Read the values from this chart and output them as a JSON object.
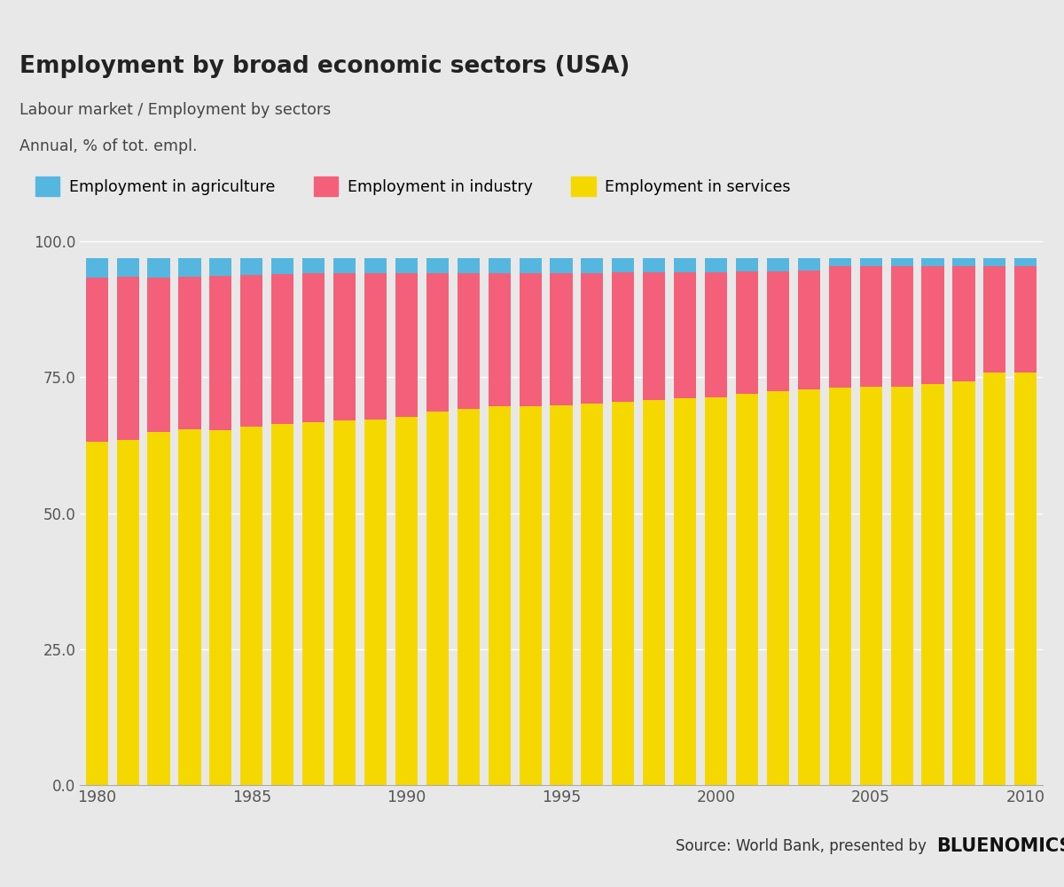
{
  "title": "Employment by broad economic sectors (USA)",
  "subtitle1": "Labour market / Employment by sectors",
  "subtitle2": "Annual, % of tot. empl.",
  "years": [
    1980,
    1981,
    1982,
    1983,
    1984,
    1985,
    1986,
    1987,
    1988,
    1989,
    1990,
    1991,
    1992,
    1993,
    1994,
    1995,
    1996,
    1997,
    1998,
    1999,
    2000,
    2001,
    2002,
    2003,
    2004,
    2005,
    2006,
    2007,
    2008,
    2009,
    2010
  ],
  "agriculture": [
    3.6,
    3.5,
    3.5,
    3.5,
    3.3,
    3.1,
    3.0,
    2.9,
    2.8,
    2.8,
    2.8,
    2.8,
    2.8,
    2.8,
    2.8,
    2.8,
    2.8,
    2.7,
    2.7,
    2.6,
    2.6,
    2.5,
    2.5,
    2.4,
    1.6,
    1.6,
    1.5,
    1.5,
    1.5,
    1.6,
    1.6
  ],
  "industry": [
    30.3,
    30.0,
    28.5,
    28.0,
    28.5,
    28.0,
    27.5,
    27.3,
    27.2,
    27.0,
    26.5,
    25.5,
    25.0,
    24.5,
    24.5,
    24.3,
    24.0,
    23.8,
    23.5,
    23.2,
    23.0,
    22.5,
    22.0,
    21.8,
    22.3,
    22.2,
    22.3,
    21.8,
    21.2,
    19.5,
    19.5
  ],
  "services": [
    63.1,
    63.5,
    64.9,
    65.5,
    65.2,
    65.9,
    66.5,
    66.8,
    67.0,
    67.2,
    67.7,
    68.7,
    69.2,
    69.7,
    69.7,
    69.9,
    70.2,
    70.5,
    70.8,
    71.2,
    71.4,
    72.0,
    72.5,
    72.8,
    73.1,
    73.2,
    73.2,
    73.7,
    74.3,
    75.9,
    75.9
  ],
  "color_agriculture": "#55b7e0",
  "color_industry": "#f4607a",
  "color_services": "#f5d800",
  "color_header_bar": "#4db8e8",
  "color_bg_header": "#e8e8e8",
  "color_bg_chart": "#e8e8e8",
  "color_bg_plot": "#e8e8e8",
  "color_bg_footer": "#d0d0d0",
  "color_grid": "#ffffff",
  "color_bar_gap": "#e8e8e8",
  "yticks": [
    0.0,
    25.0,
    50.0,
    75.0,
    100.0
  ],
  "source_text": "Source: World Bank, presented by",
  "brand_text": "BLUENOMICS"
}
